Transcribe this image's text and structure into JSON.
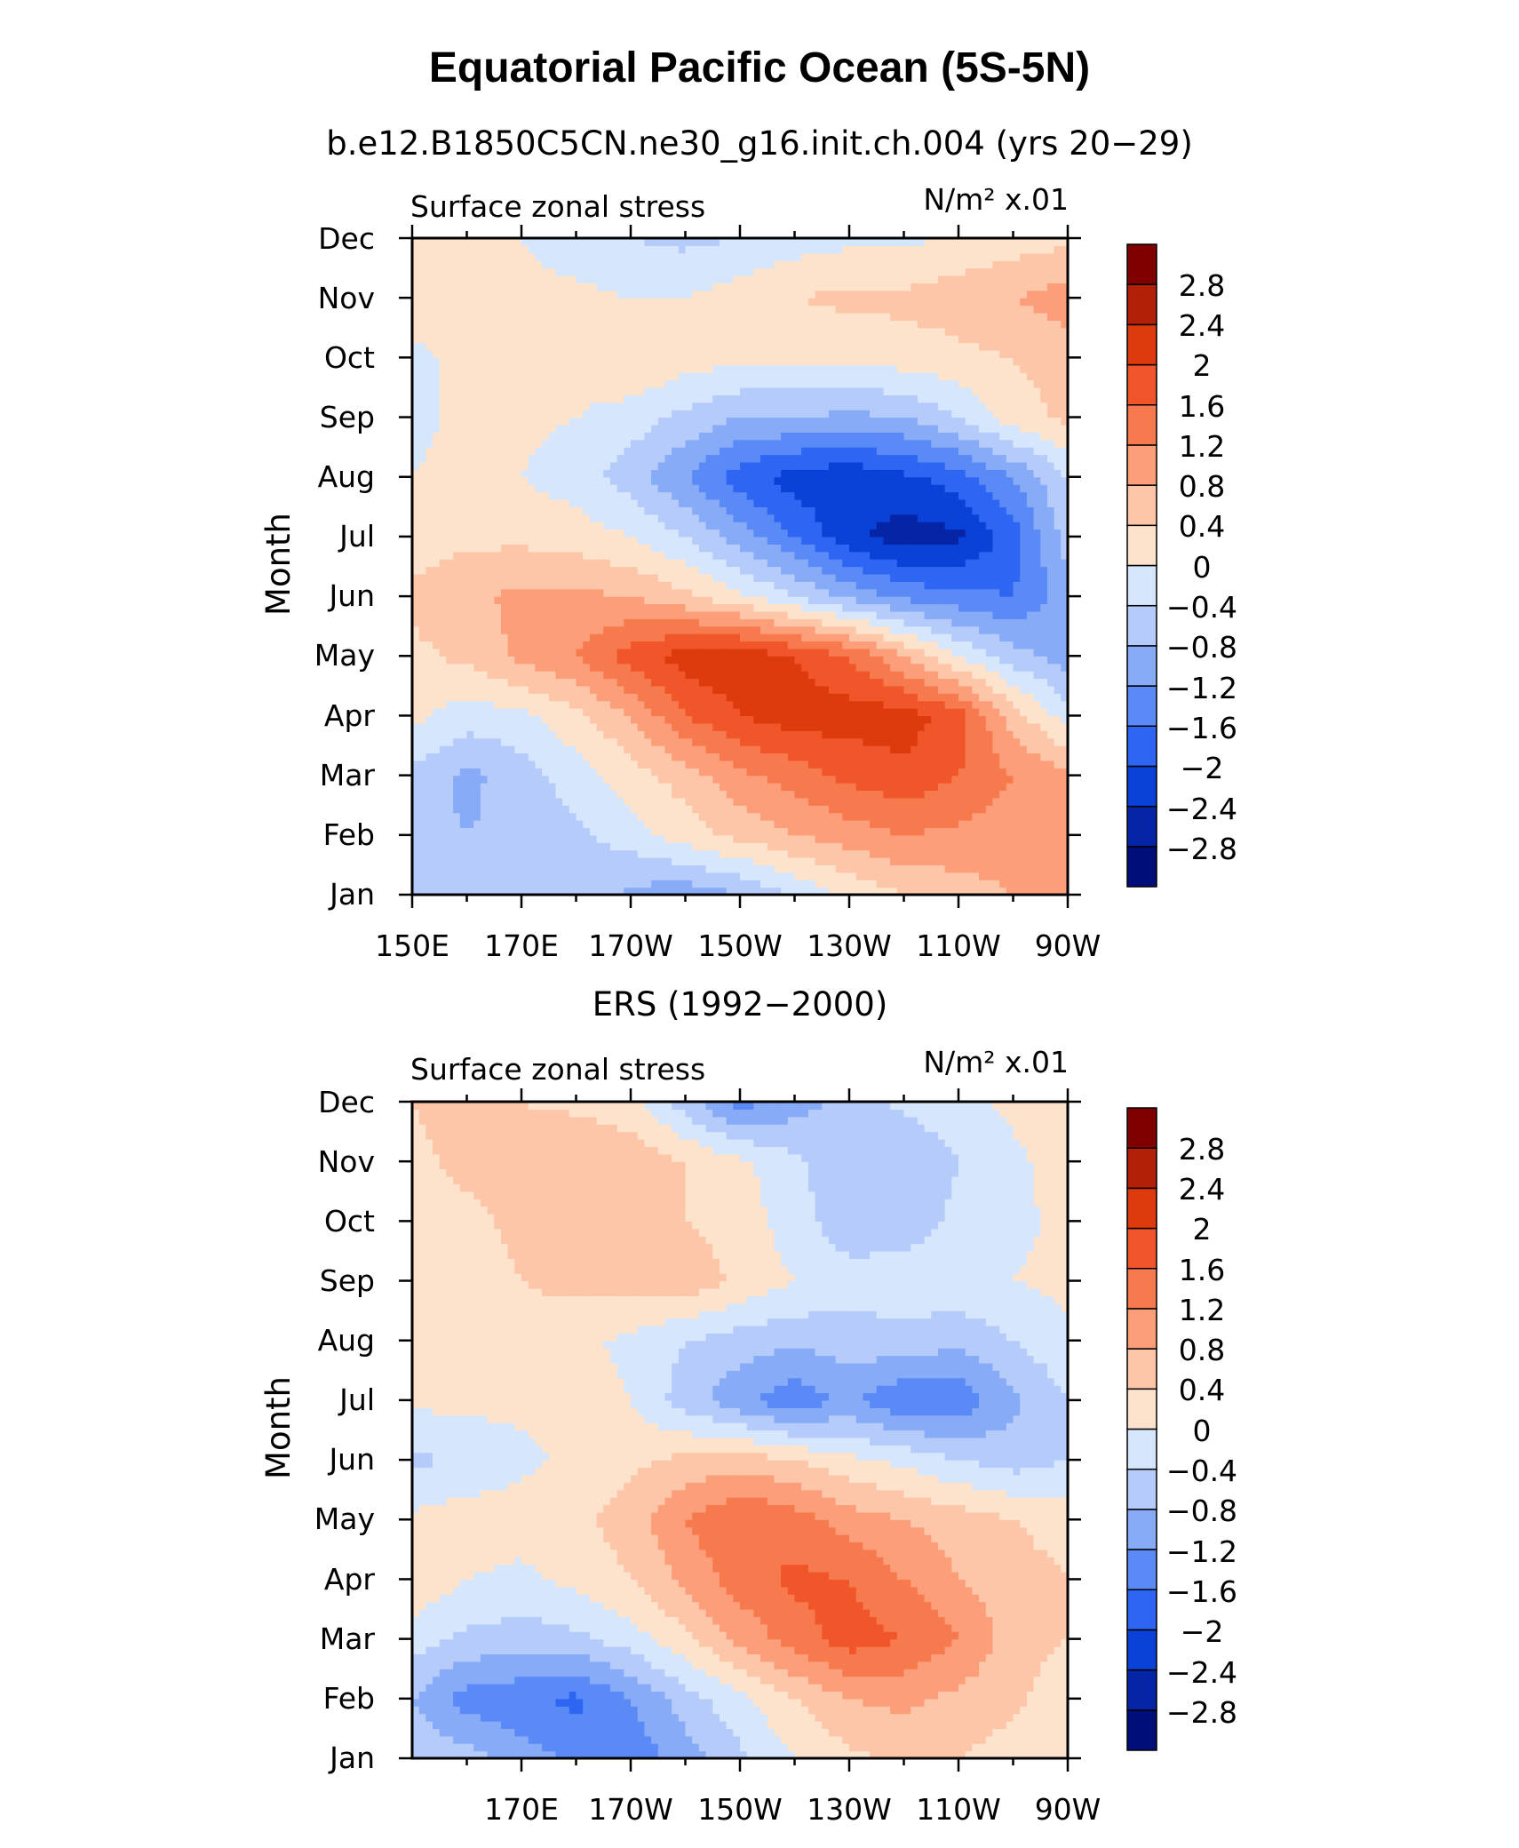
{
  "page": {
    "title": "Equatorial Pacific Ocean (5S-5N)"
  },
  "chart_data": [
    {
      "type": "heatmap",
      "title": "b.e12.B1850C5CN.ne30_g16.init.ch.004 (yrs 20−29)",
      "left_string": "Surface zonal stress",
      "units": "N/m² x.01",
      "xlabel": "",
      "ylabel": "Month",
      "x_tick_labels": [
        "150E",
        "170E",
        "170W",
        "150W",
        "130W",
        "110W",
        "90W"
      ],
      "x_tick_values": [
        150,
        170,
        190,
        210,
        230,
        250,
        270
      ],
      "xlim": [
        150,
        270
      ],
      "y_tick_labels": [
        "Jan",
        "Feb",
        "Mar",
        "Apr",
        "May",
        "Jun",
        "Jul",
        "Aug",
        "Sep",
        "Oct",
        "Nov",
        "Dec"
      ],
      "ylim": [
        1,
        12
      ],
      "x": [
        150,
        160,
        170,
        180,
        190,
        200,
        210,
        220,
        230,
        240,
        250,
        260,
        270
      ],
      "y": [
        "Jan",
        "Feb",
        "Mar",
        "Apr",
        "May",
        "Jun",
        "Jul",
        "Aug",
        "Sep",
        "Oct",
        "Nov",
        "Dec"
      ],
      "z": [
        [
          -0.6,
          -0.5,
          -0.5,
          -0.5,
          -0.9,
          -1.1,
          -0.8,
          -0.4,
          0.1,
          0.4,
          0.6,
          0.8,
          0.9
        ],
        [
          -0.7,
          -0.8,
          -0.7,
          -0.5,
          -0.2,
          0.2,
          0.5,
          0.8,
          1.0,
          1.2,
          1.1,
          1.0,
          0.9
        ],
        [
          -0.5,
          -0.9,
          -0.6,
          -0.2,
          0.2,
          0.6,
          1.1,
          1.4,
          1.7,
          1.9,
          1.6,
          1.2,
          0.9
        ],
        [
          0.1,
          -0.2,
          -0.1,
          0.3,
          0.8,
          1.6,
          2.0,
          2.2,
          2.2,
          2.2,
          1.8,
          0.6,
          -0.2
        ],
        [
          0.3,
          0.5,
          0.9,
          1.2,
          1.8,
          2.2,
          2.3,
          2.0,
          1.6,
          0.8,
          0.0,
          -0.6,
          -1.0
        ],
        [
          0.5,
          0.7,
          0.9,
          0.9,
          0.8,
          0.5,
          0.1,
          -0.4,
          -0.9,
          -1.3,
          -1.5,
          -1.6,
          -1.0
        ],
        [
          0.2,
          0.3,
          0.3,
          0.2,
          0.0,
          -0.4,
          -1.0,
          -1.6,
          -2.3,
          -2.6,
          -2.5,
          -1.8,
          -0.6
        ],
        [
          0.0,
          0.1,
          0.0,
          -0.2,
          -0.6,
          -1.2,
          -1.8,
          -2.2,
          -2.3,
          -2.1,
          -1.8,
          -1.2,
          -0.4
        ],
        [
          -0.1,
          0.1,
          0.1,
          0.0,
          -0.2,
          -0.5,
          -0.8,
          -0.8,
          -0.9,
          -0.8,
          -0.4,
          0.2,
          0.5
        ],
        [
          -0.1,
          0.1,
          0.2,
          0.2,
          0.4,
          0.2,
          0.1,
          0.1,
          0.1,
          0.2,
          0.3,
          0.4,
          0.6
        ],
        [
          0.2,
          0.2,
          0.1,
          0.1,
          0.0,
          0.0,
          0.2,
          0.4,
          0.5,
          0.5,
          0.6,
          0.8,
          1.0
        ],
        [
          0.3,
          0.2,
          0.0,
          -0.2,
          -0.4,
          -0.5,
          -0.4,
          -0.2,
          -0.1,
          -0.1,
          0.1,
          0.2,
          0.3
        ]
      ],
      "colorbar": {
        "labels": [
          "2.8",
          "2.4",
          "2",
          "1.6",
          "1.2",
          "0.8",
          "0.4",
          "0",
          "−0.4",
          "−0.8",
          "−1.2",
          "−1.6",
          "−2",
          "−2.4",
          "−2.8"
        ],
        "levels": [
          -2.8,
          -2.4,
          -2.0,
          -1.6,
          -1.2,
          -0.8,
          -0.4,
          0.0,
          0.4,
          0.8,
          1.2,
          1.6,
          2.0,
          2.4,
          2.8
        ],
        "colors": [
          "#000e7a",
          "#0525a6",
          "#0a41d6",
          "#2e65f2",
          "#5a8af5",
          "#88abf7",
          "#b5cbfa",
          "#d6e6fc",
          "#fde3cc",
          "#fdc6a8",
          "#fb9e79",
          "#f77a4f",
          "#f0562a",
          "#dd3a0e",
          "#b32008",
          "#800000"
        ]
      },
      "grid": false
    },
    {
      "type": "heatmap",
      "title": "ERS (1992−2000)",
      "left_string": "Surface zonal stress",
      "units": "N/m² x.01",
      "xlabel": "",
      "ylabel": "Month",
      "x_tick_labels": [
        "170E",
        "170W",
        "150W",
        "130W",
        "110W",
        "90W"
      ],
      "x_tick_values": [
        170,
        190,
        210,
        230,
        250,
        270
      ],
      "xlim": [
        150,
        270
      ],
      "y_tick_labels": [
        "Jan",
        "Feb",
        "Mar",
        "Apr",
        "May",
        "Jun",
        "Jul",
        "Aug",
        "Sep",
        "Oct",
        "Nov",
        "Dec"
      ],
      "ylim": [
        1,
        12
      ],
      "x": [
        150,
        160,
        170,
        180,
        190,
        200,
        210,
        220,
        230,
        240,
        250,
        260,
        270
      ],
      "y": [
        "Jan",
        "Feb",
        "Mar",
        "Apr",
        "May",
        "Jun",
        "Jul",
        "Aug",
        "Sep",
        "Oct",
        "Nov",
        "Dec"
      ],
      "z": [
        [
          -0.5,
          -0.6,
          -1.0,
          -1.3,
          -1.5,
          -1.0,
          -0.5,
          0.0,
          0.3,
          0.5,
          0.4,
          0.2,
          0.1
        ],
        [
          -0.8,
          -1.4,
          -1.5,
          -1.7,
          -1.2,
          -0.6,
          -0.1,
          0.4,
          0.8,
          0.9,
          0.7,
          0.5,
          0.1
        ],
        [
          -0.2,
          -0.5,
          -0.6,
          -0.5,
          -0.2,
          0.3,
          0.9,
          1.4,
          1.8,
          1.6,
          1.2,
          0.6,
          0.4
        ],
        [
          0.3,
          0.0,
          -0.1,
          0.1,
          0.4,
          0.9,
          1.4,
          1.7,
          1.6,
          1.2,
          0.8,
          0.6,
          0.4
        ],
        [
          0.1,
          0.2,
          0.2,
          0.3,
          0.6,
          1.2,
          1.6,
          1.4,
          1.0,
          0.8,
          0.6,
          0.4,
          0.2
        ],
        [
          -0.5,
          -0.3,
          -0.1,
          0.1,
          0.3,
          0.5,
          0.6,
          0.4,
          0.1,
          -0.1,
          -0.4,
          -0.6,
          -0.4
        ],
        [
          0.1,
          0.1,
          0.1,
          0.2,
          0.0,
          -0.6,
          -1.1,
          -1.5,
          -1.1,
          -1.6,
          -1.5,
          -0.9,
          -0.4
        ],
        [
          0.1,
          0.2,
          0.3,
          0.1,
          -0.1,
          -0.4,
          -0.6,
          -0.7,
          -0.6,
          -0.5,
          -0.7,
          -0.4,
          -0.1
        ],
        [
          0.1,
          0.2,
          0.4,
          0.5,
          0.6,
          0.7,
          0.3,
          0.0,
          -0.2,
          -0.2,
          -0.1,
          0.0,
          0.1
        ],
        [
          0.2,
          0.3,
          0.5,
          0.5,
          0.6,
          0.4,
          0.2,
          -0.2,
          -0.7,
          -0.6,
          -0.3,
          -0.1,
          0.1
        ],
        [
          0.3,
          0.5,
          0.6,
          0.8,
          0.7,
          0.4,
          0.1,
          -0.3,
          -0.8,
          -0.8,
          -0.4,
          -0.1,
          0.2
        ],
        [
          0.4,
          0.6,
          0.4,
          0.3,
          0.1,
          -0.6,
          -1.4,
          -1.0,
          -0.6,
          -0.3,
          -0.1,
          0.1,
          0.3
        ]
      ],
      "colorbar": {
        "labels": [
          "2.8",
          "2.4",
          "2",
          "1.6",
          "1.2",
          "0.8",
          "0.4",
          "0",
          "−0.4",
          "−0.8",
          "−1.2",
          "−1.6",
          "−2",
          "−2.4",
          "−2.8"
        ],
        "levels": [
          -2.8,
          -2.4,
          -2.0,
          -1.6,
          -1.2,
          -0.8,
          -0.4,
          0.0,
          0.4,
          0.8,
          1.2,
          1.6,
          2.0,
          2.4,
          2.8
        ],
        "colors": [
          "#000e7a",
          "#0525a6",
          "#0a41d6",
          "#2e65f2",
          "#5a8af5",
          "#88abf7",
          "#b5cbfa",
          "#d6e6fc",
          "#fde3cc",
          "#fdc6a8",
          "#fb9e79",
          "#f77a4f",
          "#f0562a",
          "#dd3a0e",
          "#b32008",
          "#800000"
        ]
      },
      "grid": false
    }
  ]
}
